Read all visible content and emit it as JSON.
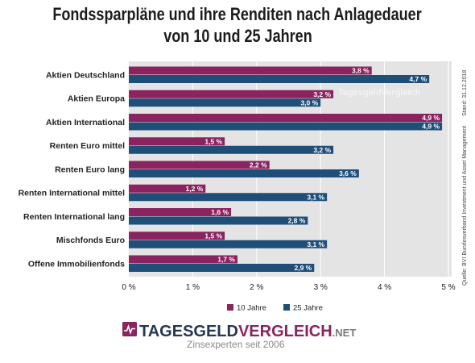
{
  "chart_data": {
    "type": "bar",
    "orientation": "horizontal",
    "title": [
      "Fondssparpläne und ihre Renditen nach Anlagedauer",
      "von 10 und 25 Jahren"
    ],
    "categories": [
      "Aktien Deutschland",
      "Aktien Europa",
      "Aktien International",
      "Renten Euro mittel",
      "Renten Euro lang",
      "Renten International mittel",
      "Renten International lang",
      "Mischfonds Euro",
      "Offene Immobilienfonds"
    ],
    "series": [
      {
        "name": "10 Jahre",
        "color": "#8b2360",
        "values": [
          3.8,
          3.2,
          4.9,
          1.5,
          2.2,
          1.2,
          1.6,
          1.5,
          1.7
        ],
        "labels": [
          "3,8 %",
          "3,2 %",
          "4,9 %",
          "1,5 %",
          "2,2 %",
          "1,2 %",
          "1,6 %",
          "1,5 %",
          "1,7 %"
        ]
      },
      {
        "name": "25 Jahre",
        "color": "#1f4e79",
        "values": [
          4.7,
          3.0,
          4.9,
          3.2,
          3.6,
          3.1,
          2.8,
          3.1,
          2.9
        ],
        "labels": [
          "4,7 %",
          "3,0 %",
          "4,9 %",
          "3,2 %",
          "3,6 %",
          "3,1 %",
          "2,8 %",
          "3,1 %",
          "2,9 %"
        ]
      }
    ],
    "xlim": [
      0,
      5
    ],
    "x_ticks": [
      0,
      1,
      2,
      3,
      4,
      5
    ],
    "x_tick_labels": [
      "0 %",
      "1 %",
      "2 %",
      "3 %",
      "4 %",
      "5 %"
    ],
    "grid": true,
    "legend": "bottom-center"
  },
  "source": {
    "quelle": "Quelle: BVI Bundesverband Investment und Asset Management",
    "stand": "Stand: 31.12.2018"
  },
  "watermark": "TagesgeldVergleich",
  "logo": {
    "icon": "heartbeat-chart-icon",
    "word_1": "TAGESGELD",
    "word_2": "VERGLEICH",
    "suffix": ".NET",
    "tagline": "Zinsexperten seit 2006",
    "color_1": "#263754",
    "color_2": "#8b2360"
  }
}
